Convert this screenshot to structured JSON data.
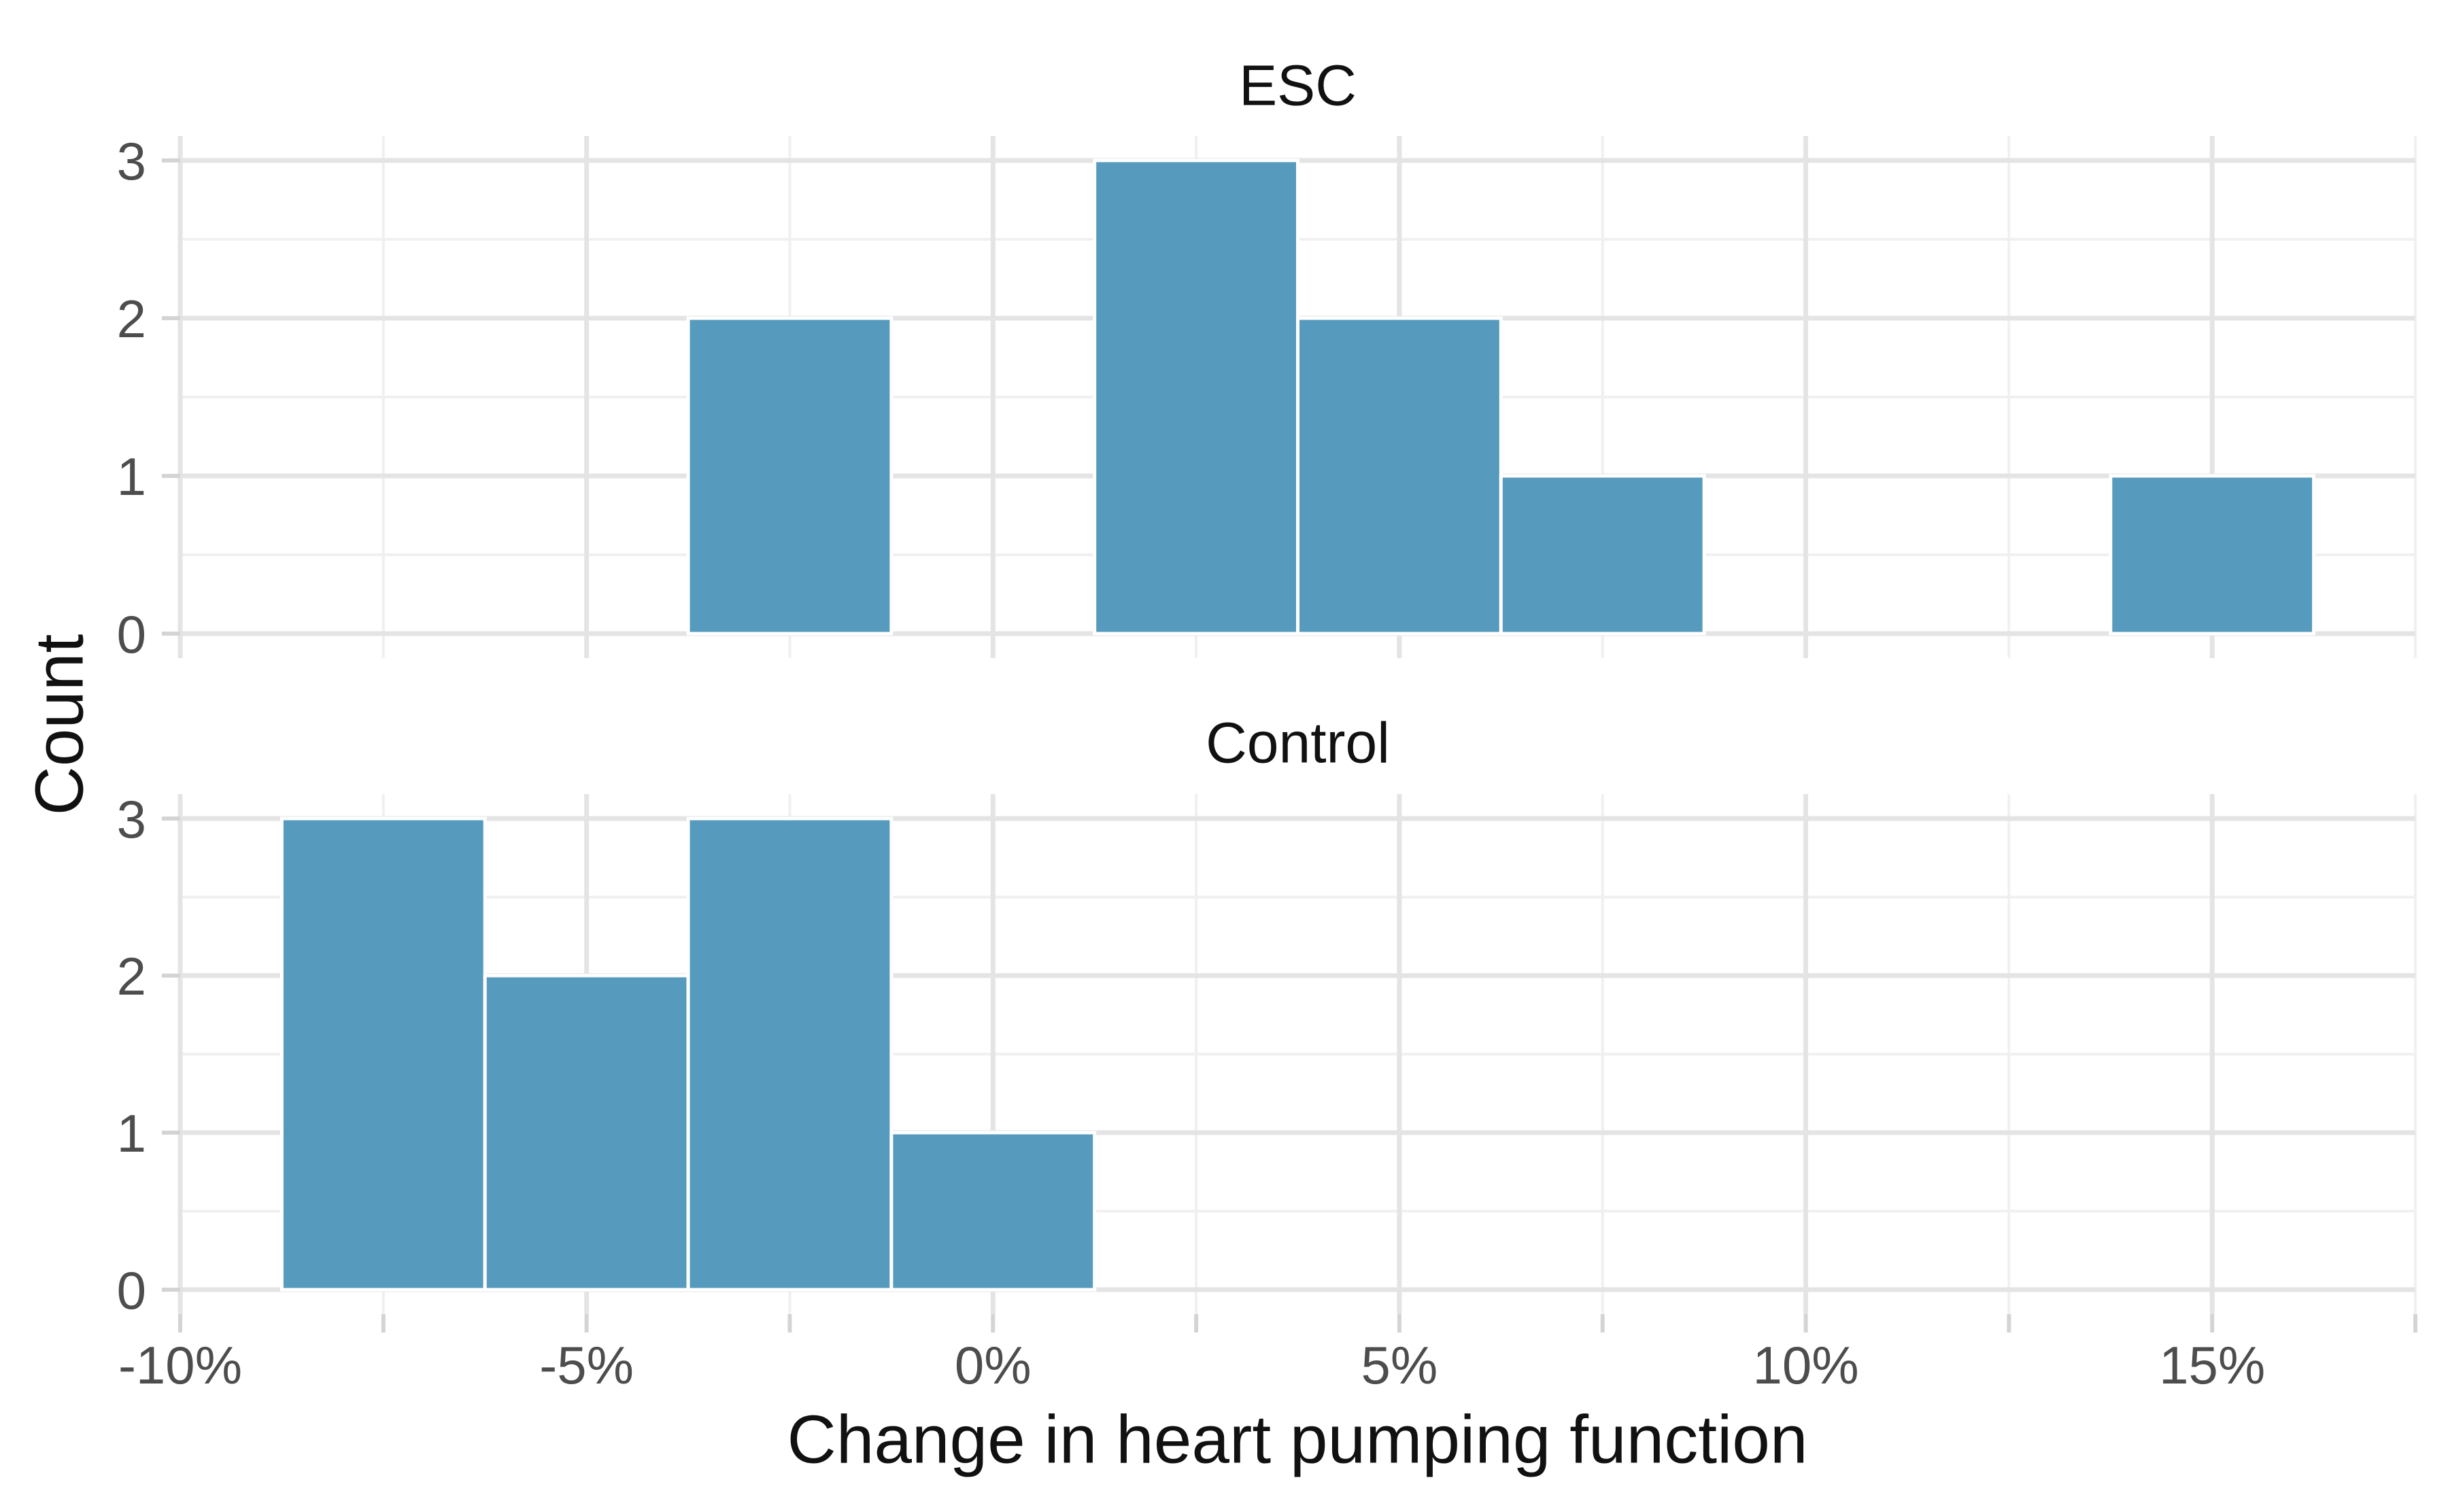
{
  "chart_data": {
    "type": "histogram",
    "xlabel": "Change in heart pumping function",
    "ylabel": "Count",
    "binwidth": 2.5,
    "xlim": [
      -10,
      17.5
    ],
    "ylim": [
      0,
      3
    ],
    "grid": true,
    "legend": false,
    "facets": [
      {
        "label": "ESC",
        "bins": [
          {
            "x0": -3.75,
            "x1": -1.25,
            "count": 2
          },
          {
            "x0": 1.25,
            "x1": 3.75,
            "count": 3
          },
          {
            "x0": 3.75,
            "x1": 6.25,
            "count": 2
          },
          {
            "x0": 6.25,
            "x1": 8.75,
            "count": 1
          },
          {
            "x0": 13.75,
            "x1": 16.25,
            "count": 1
          }
        ]
      },
      {
        "label": "Control",
        "bins": [
          {
            "x0": -8.75,
            "x1": -6.25,
            "count": 3
          },
          {
            "x0": -6.25,
            "x1": -3.75,
            "count": 2
          },
          {
            "x0": -3.75,
            "x1": -1.25,
            "count": 3
          },
          {
            "x0": -1.25,
            "x1": 1.25,
            "count": 1
          }
        ]
      }
    ],
    "x_major_ticks": [
      {
        "value": -10,
        "label": "-10%"
      },
      {
        "value": -5,
        "label": "-5%"
      },
      {
        "value": 0,
        "label": "0%"
      },
      {
        "value": 5,
        "label": "5%"
      },
      {
        "value": 10,
        "label": "10%"
      },
      {
        "value": 15,
        "label": "15%"
      }
    ],
    "x_minor_ticks": [
      -7.5,
      -2.5,
      2.5,
      7.5,
      12.5,
      17.5
    ],
    "y_major_ticks": [
      {
        "value": 0,
        "label": "0"
      },
      {
        "value": 1,
        "label": "1"
      },
      {
        "value": 2,
        "label": "2"
      },
      {
        "value": 3,
        "label": "3"
      }
    ],
    "y_minor_ticks": [
      0.5,
      1.5,
      2.5
    ],
    "colors": {
      "bar_fill": "#569BBD",
      "bar_border": "#FFFFFF",
      "grid_major": "#E4E4E4",
      "grid_minor": "#F0F0F0",
      "tick": "#D4D4D4",
      "tick_label": "#4D4D4D",
      "title": "#111111",
      "background": "#FFFFFF"
    }
  }
}
